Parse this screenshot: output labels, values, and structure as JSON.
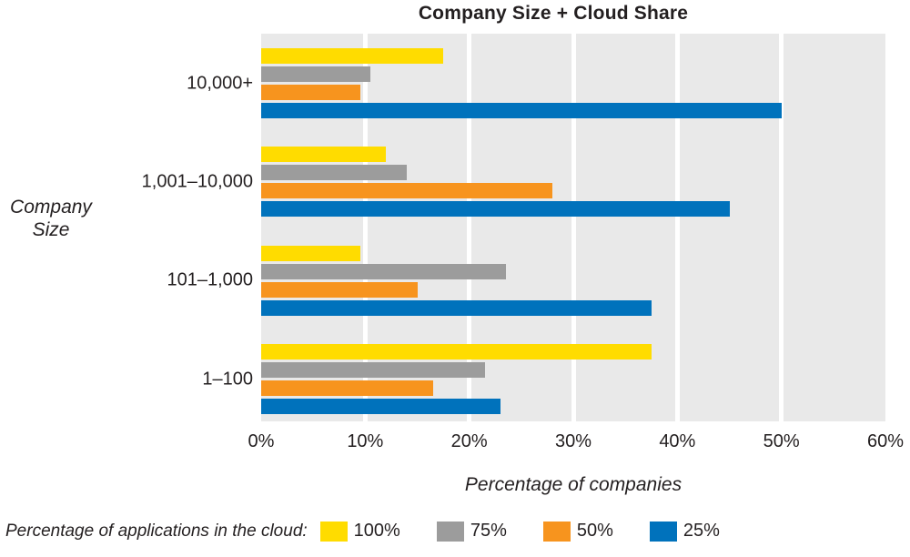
{
  "chart_data": {
    "type": "bar",
    "orientation": "horizontal",
    "title": "Company Size + Cloud Share",
    "categories": [
      "10,000+",
      "1,001–10,000",
      "101–1,000",
      "1–100"
    ],
    "series": [
      {
        "name": "100%",
        "color": "#FFDC00",
        "values": [
          17.5,
          12,
          9.5,
          37.5
        ]
      },
      {
        "name": "75%",
        "color": "#9C9C9C",
        "values": [
          10.5,
          14,
          23.5,
          21.5
        ]
      },
      {
        "name": "50%",
        "color": "#F7941E",
        "values": [
          9.5,
          28,
          15,
          16.5
        ]
      },
      {
        "name": "25%",
        "color": "#0072BC",
        "values": [
          50,
          45,
          37.5,
          23
        ]
      }
    ],
    "xlabel": "Percentage of companies",
    "ylabel": "Company Size",
    "xlim": [
      0,
      60
    ],
    "xtick_step": 10,
    "xticks": [
      "0%",
      "10%",
      "20%",
      "30%",
      "40%",
      "50%",
      "60%"
    ],
    "legend_title": "Percentage of applications in the cloud:",
    "legend_position": "bottom",
    "grid": "vertical-white",
    "plot_background": "#E9E9E9",
    "text_color": "#231F20"
  }
}
